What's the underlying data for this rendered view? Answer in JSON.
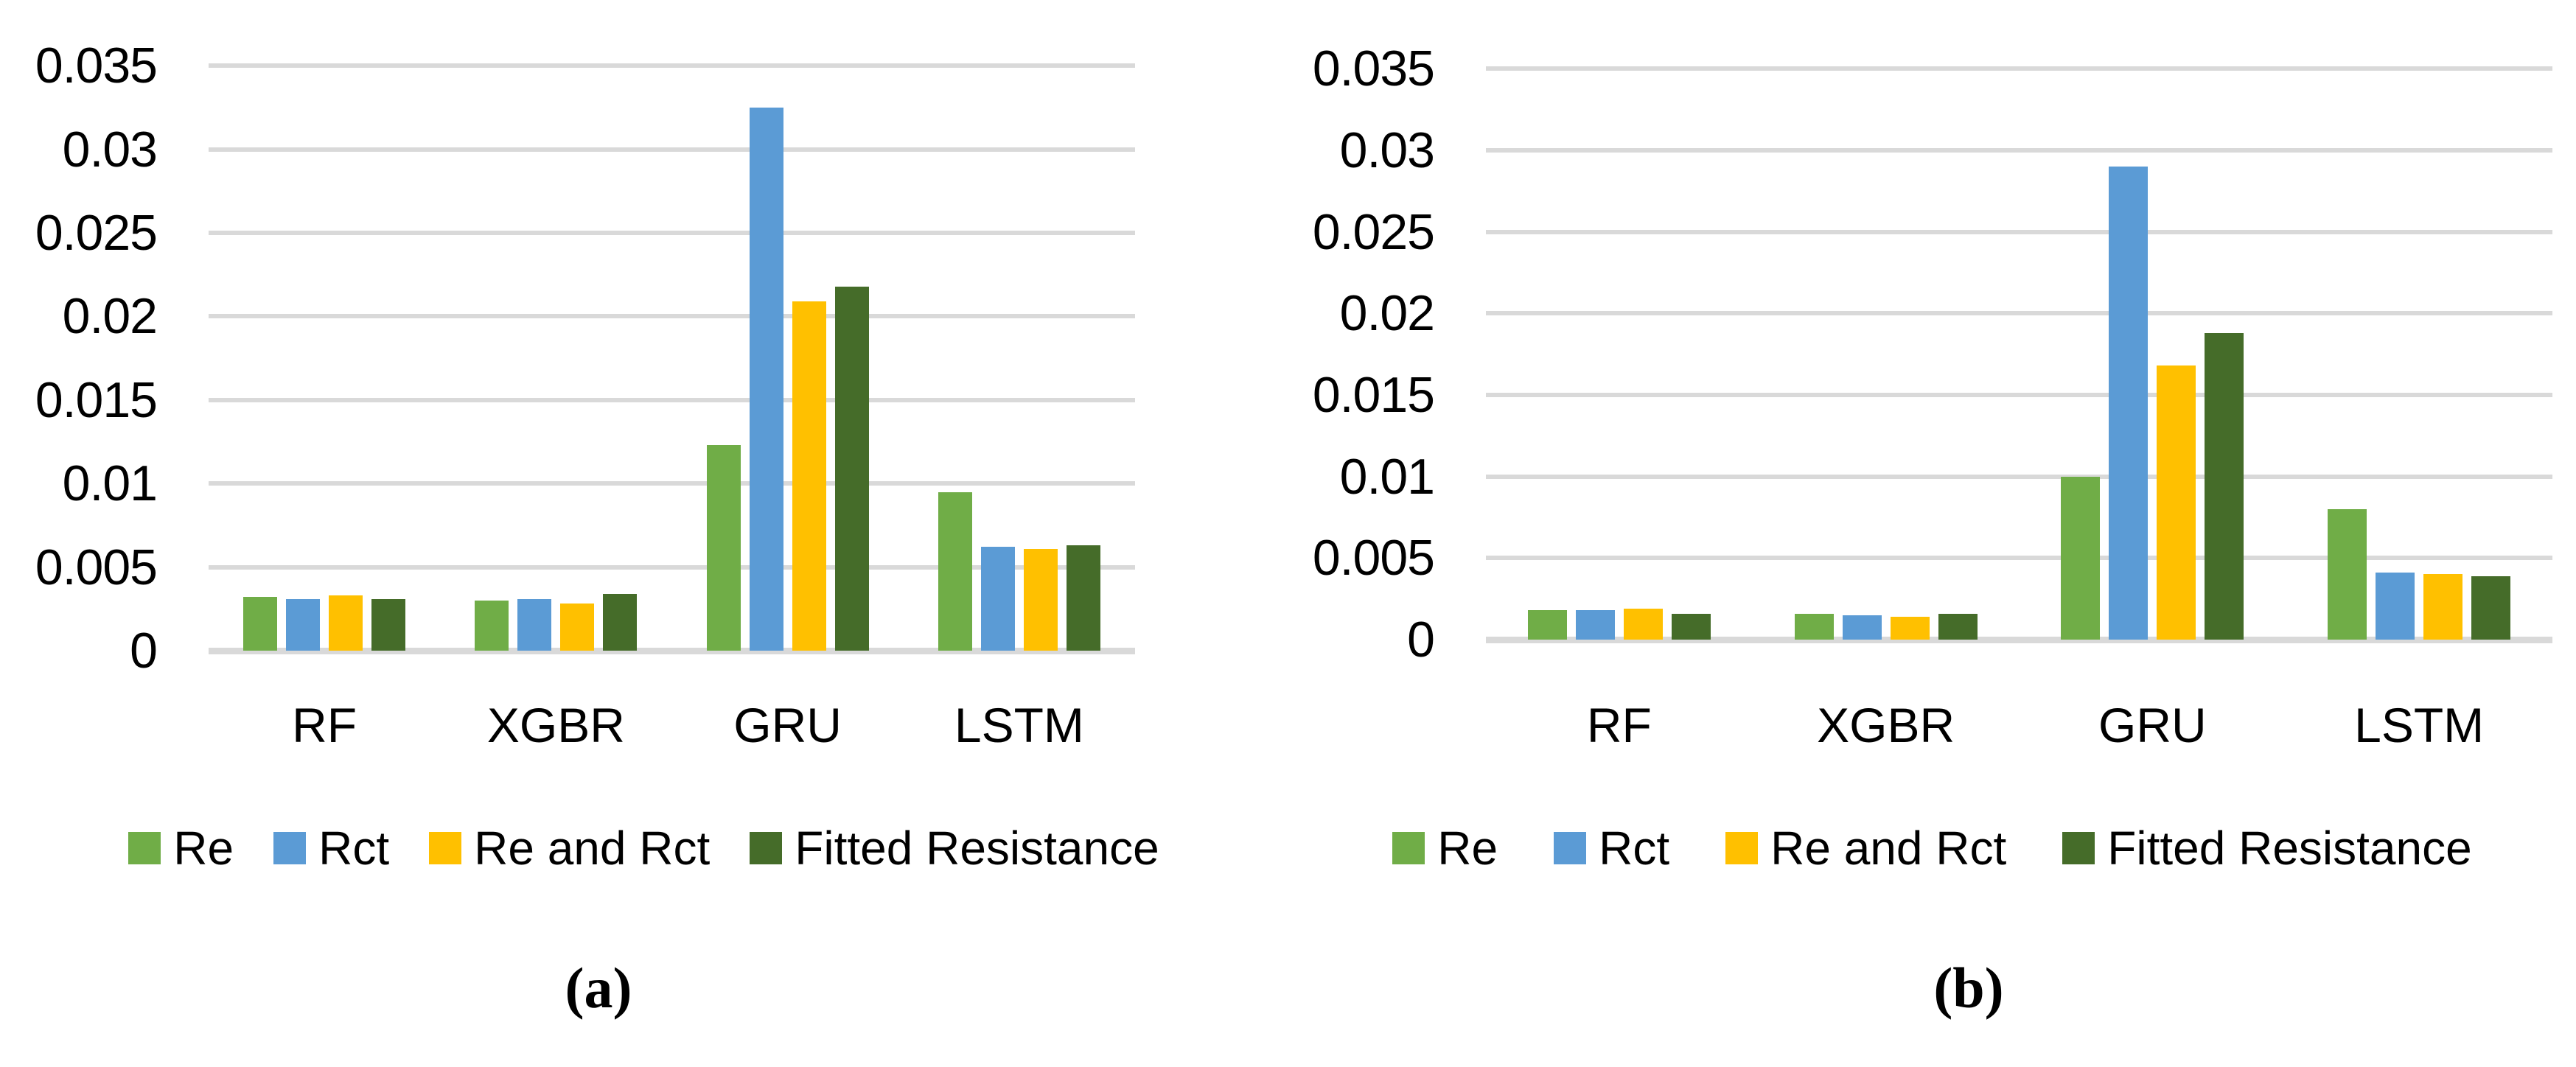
{
  "figure": {
    "description": "Two grouped bar charts comparing model errors for RF, XGBR, GRU and LSTM",
    "background": "#ffffff"
  },
  "colors": {
    "re_green": "#70AD47",
    "rct_blue": "#5B9BD5",
    "re_and_rct_yellow": "#FFC000",
    "fitted_resistance_dark_green": "#456C29",
    "gridline_gray": "#D9D9D9",
    "text_black": "#000000"
  },
  "chart_data": [
    {
      "id": "a",
      "type": "bar",
      "title": "",
      "caption": "(a)",
      "xlabel": "",
      "ylabel": "",
      "grid": true,
      "legend_position": "bottom",
      "categories": [
        "RF",
        "XGBR",
        "GRU",
        "LSTM"
      ],
      "series": [
        {
          "name": "Re",
          "color": "#70AD47",
          "values": [
            0.0032,
            0.003,
            0.0123,
            0.0095
          ]
        },
        {
          "name": "Rct",
          "color": "#5B9BD5",
          "values": [
            0.0031,
            0.0031,
            0.0325,
            0.0062
          ]
        },
        {
          "name": "Re and Rct",
          "color": "#FFC000",
          "values": [
            0.0033,
            0.0028,
            0.0209,
            0.0061
          ]
        },
        {
          "name": "Fitted Resistance",
          "color": "#456C29",
          "values": [
            0.0031,
            0.0034,
            0.0218,
            0.0063
          ]
        }
      ],
      "y_axis": {
        "min": 0,
        "max": 0.035,
        "step": 0.005,
        "tick_labels": [
          "0",
          "0.005",
          "0.01",
          "0.015",
          "0.02",
          "0.025",
          "0.03",
          "0.035"
        ]
      },
      "legend": [
        "Re",
        "Rct",
        "Re and Rct",
        "Fitted Resistance"
      ]
    },
    {
      "id": "b",
      "type": "bar",
      "title": "",
      "caption": "(b)",
      "xlabel": "",
      "ylabel": "",
      "grid": true,
      "legend_position": "bottom",
      "categories": [
        "RF",
        "XGBR",
        "GRU",
        "LSTM"
      ],
      "series": [
        {
          "name": "Re",
          "color": "#70AD47",
          "values": [
            0.0018,
            0.0016,
            0.01,
            0.008
          ]
        },
        {
          "name": "Rct",
          "color": "#5B9BD5",
          "values": [
            0.0018,
            0.0015,
            0.029,
            0.0041
          ]
        },
        {
          "name": "Re and Rct",
          "color": "#FFC000",
          "values": [
            0.0019,
            0.0014,
            0.0168,
            0.004
          ]
        },
        {
          "name": "Fitted Resistance",
          "color": "#456C29",
          "values": [
            0.0016,
            0.0016,
            0.0188,
            0.0039
          ]
        }
      ],
      "y_axis": {
        "min": 0,
        "max": 0.035,
        "step": 0.005,
        "tick_labels": [
          "0",
          "0.005",
          "0.01",
          "0.015",
          "0.02",
          "0.025",
          "0.03",
          "0.035"
        ]
      },
      "legend": [
        "Re",
        "Rct",
        "Re and Rct",
        "Fitted Resistance"
      ]
    }
  ]
}
